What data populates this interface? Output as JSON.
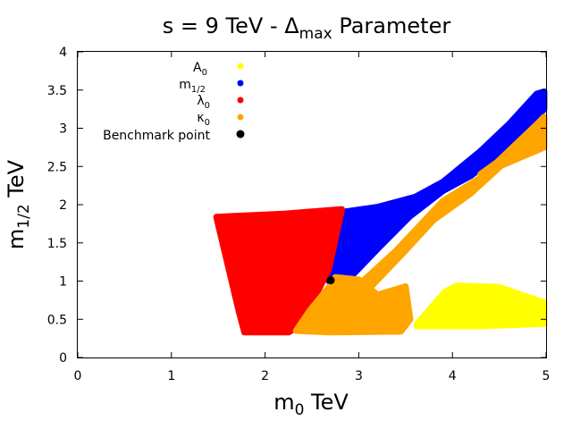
{
  "chart_data": {
    "type": "scatter",
    "title": {
      "prefix": "s = 9 TeV - Δ",
      "sub": "max",
      "suffix": " Parameter"
    },
    "xlabel": {
      "main": "m",
      "sub": "0",
      "unit": " TeV"
    },
    "ylabel": {
      "main": "m",
      "sub": "1/2",
      "unit": " TeV"
    },
    "xlim": [
      0,
      5
    ],
    "ylim": [
      0,
      4
    ],
    "xticks": [
      "0",
      "1",
      "2",
      "3",
      "4",
      "5"
    ],
    "yticks": [
      "0",
      "0.5",
      "1",
      "1.5",
      "2",
      "2.5",
      "3",
      "3.5",
      "4"
    ],
    "legend_position": "top-left",
    "series": [
      {
        "id": "A0",
        "name": "A",
        "sub": "0",
        "color": "#ffff00",
        "regions": [
          [
            [
              3.62,
              0.44
            ],
            [
              3.75,
              0.62
            ],
            [
              3.92,
              0.86
            ],
            [
              4.05,
              0.94
            ],
            [
              4.5,
              0.92
            ],
            [
              4.98,
              0.72
            ],
            [
              4.98,
              0.44
            ],
            [
              4.3,
              0.41
            ],
            [
              3.62,
              0.41
            ]
          ]
        ]
      },
      {
        "id": "m12",
        "name": "m",
        "sub": "1/2",
        "color": "#0000ff",
        "regions": [
          [
            [
              2.68,
              1.0
            ],
            [
              2.8,
              1.9
            ],
            [
              3.2,
              1.97
            ],
            [
              3.6,
              2.1
            ],
            [
              3.9,
              2.3
            ],
            [
              4.3,
              2.7
            ],
            [
              4.6,
              3.05
            ],
            [
              4.9,
              3.45
            ],
            [
              4.98,
              3.48
            ],
            [
              4.98,
              3.25
            ],
            [
              4.6,
              2.75
            ],
            [
              4.2,
              2.38
            ],
            [
              3.9,
              2.18
            ],
            [
              3.55,
              1.85
            ],
            [
              3.2,
              1.42
            ],
            [
              2.95,
              1.1
            ],
            [
              2.72,
              0.95
            ]
          ]
        ]
      },
      {
        "id": "lambda0",
        "name": "λ",
        "sub": "0",
        "color": "#ff0000",
        "regions": [
          [
            [
              1.48,
              1.84
            ],
            [
              2.2,
              1.88
            ],
            [
              2.82,
              1.94
            ],
            [
              2.68,
              1.15
            ],
            [
              2.38,
              0.42
            ],
            [
              2.25,
              0.33
            ],
            [
              1.78,
              0.33
            ],
            [
              1.72,
              0.6
            ]
          ]
        ]
      },
      {
        "id": "kappa0",
        "name": "κ",
        "sub": "0",
        "color": "#ffa500",
        "regions": [
          [
            [
              2.33,
              0.35
            ],
            [
              2.48,
              0.62
            ],
            [
              2.7,
              0.95
            ],
            [
              2.75,
              1.05
            ],
            [
              3.0,
              1.02
            ],
            [
              3.2,
              0.82
            ],
            [
              3.5,
              0.93
            ],
            [
              3.55,
              0.5
            ],
            [
              3.45,
              0.34
            ],
            [
              2.7,
              0.33
            ]
          ],
          [
            [
              3.0,
              0.95
            ],
            [
              3.4,
              1.4
            ],
            [
              3.9,
              2.05
            ],
            [
              4.3,
              2.35
            ],
            [
              4.9,
              3.05
            ],
            [
              4.98,
              3.15
            ],
            [
              4.98,
              2.95
            ],
            [
              4.6,
              2.6
            ],
            [
              4.2,
              2.15
            ],
            [
              3.8,
              1.8
            ],
            [
              3.5,
              1.4
            ],
            [
              3.15,
              0.95
            ]
          ],
          [
            [
              4.3,
              2.4
            ],
            [
              4.98,
              3.0
            ],
            [
              4.98,
              2.75
            ],
            [
              4.5,
              2.5
            ]
          ]
        ]
      },
      {
        "id": "benchmark",
        "name": "Benchmark point",
        "sub": "",
        "color": "#000000",
        "points": [
          [
            2.7,
            1.01
          ]
        ]
      }
    ]
  }
}
